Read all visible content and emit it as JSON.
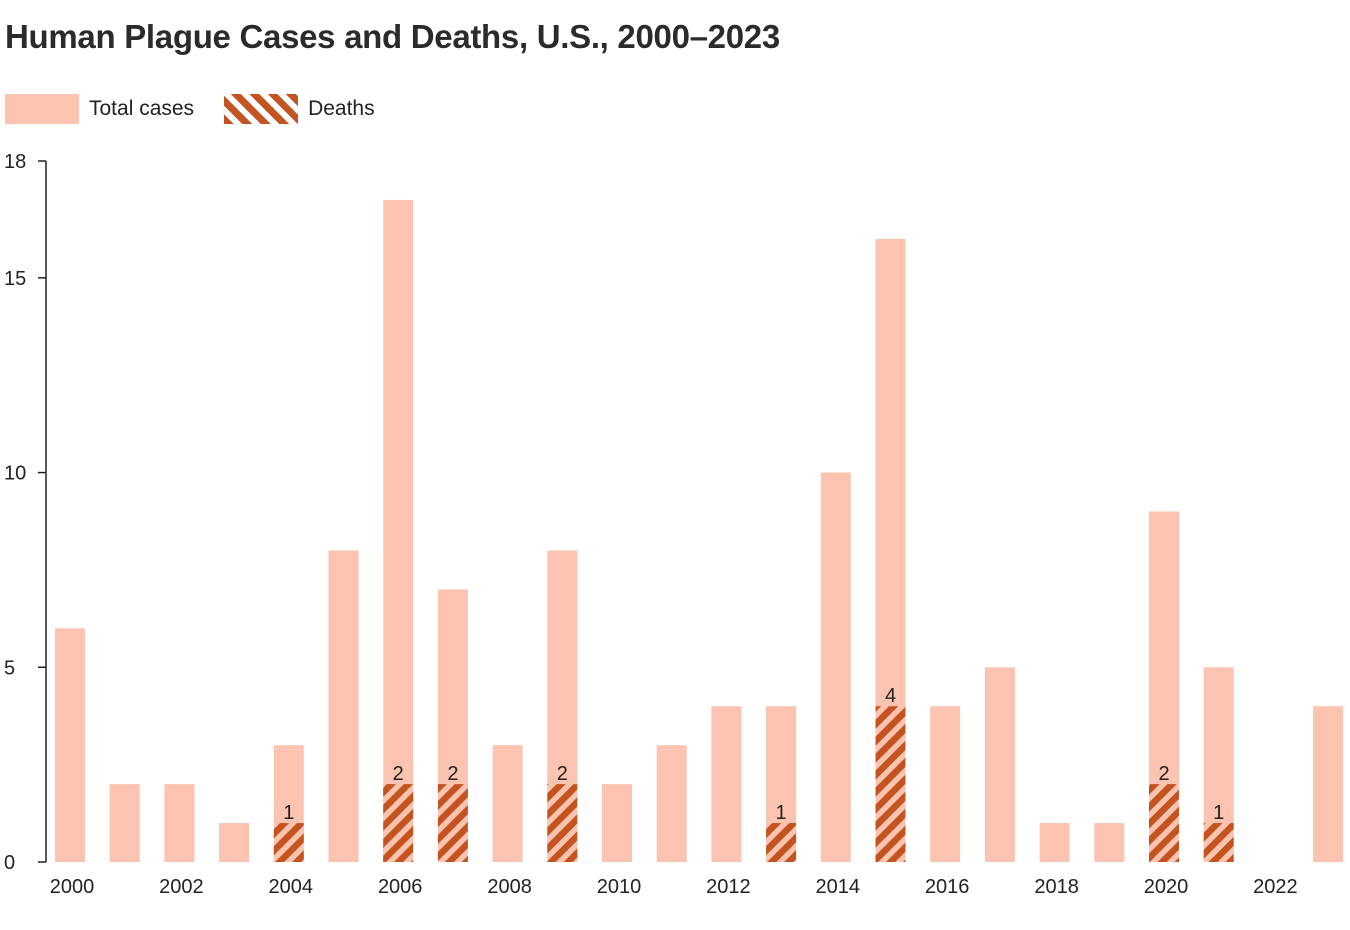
{
  "chart_data": {
    "type": "bar",
    "title": "Human Plague Cases and Deaths, U.S., 2000–2023",
    "xlabel": "",
    "ylabel": "",
    "ylim": [
      0,
      18
    ],
    "yticks": [
      0,
      5,
      10,
      15,
      18
    ],
    "categories": [
      2000,
      2001,
      2002,
      2003,
      2004,
      2005,
      2006,
      2007,
      2008,
      2009,
      2010,
      2011,
      2012,
      2013,
      2014,
      2015,
      2016,
      2017,
      2018,
      2019,
      2020,
      2021,
      2022,
      2023
    ],
    "xtick_labels": [
      "2000",
      "2002",
      "2004",
      "2006",
      "2008",
      "2010",
      "2012",
      "2014",
      "2016",
      "2018",
      "2020",
      "2022"
    ],
    "legend_placement": "top-left",
    "grid": false,
    "series": [
      {
        "name": "Total cases",
        "color": "#fbc3b0",
        "values": [
          6,
          2,
          2,
          1,
          3,
          8,
          17,
          7,
          3,
          8,
          2,
          3,
          4,
          4,
          10,
          16,
          4,
          5,
          1,
          1,
          9,
          5,
          0,
          4
        ]
      },
      {
        "name": "Deaths",
        "color": "#c4541f",
        "pattern": "diagonal-stripes",
        "values": [
          0,
          0,
          0,
          0,
          1,
          0,
          2,
          2,
          0,
          2,
          0,
          0,
          0,
          1,
          0,
          4,
          0,
          0,
          0,
          0,
          2,
          1,
          0,
          0
        ]
      }
    ]
  }
}
